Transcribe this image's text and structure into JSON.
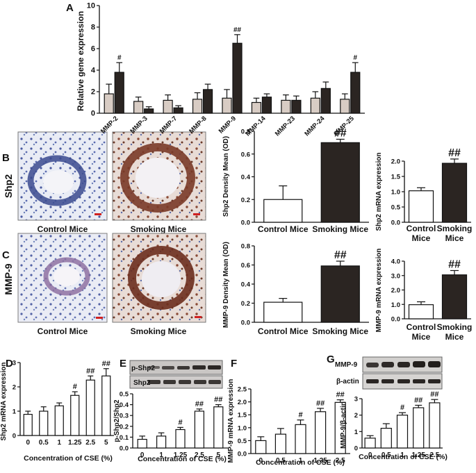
{
  "colors": {
    "light_bar": "#d8ccc4",
    "dark_bar": "#2b2522",
    "open_bar": "#ffffff",
    "axis": "#111111",
    "stain_blue": "#6b7fb8",
    "stain_brown": "#8a4a36"
  },
  "panels": {
    "A": {
      "label": "A"
    },
    "B": {
      "label": "B",
      "row_label": "Shp2",
      "img_left": "Control Mice",
      "img_right": "Smoking Mice"
    },
    "C": {
      "label": "C",
      "row_label": "MMP-9",
      "img_left": "Control Mice",
      "img_right": "Smoking Mice"
    },
    "D": {
      "label": "D"
    },
    "E": {
      "label": "E",
      "blot_rows": [
        "p-Shp2",
        "Shp2"
      ]
    },
    "F": {
      "label": "F"
    },
    "G": {
      "label": "G",
      "blot_rows": [
        "MMP-9",
        "β-actin"
      ]
    }
  },
  "chart_data": [
    {
      "id": "A",
      "type": "bar",
      "ylabel": "Relative gene expression",
      "ylim": [
        0,
        10
      ],
      "yticks": [
        0,
        2,
        4,
        6,
        8,
        10
      ],
      "categories": [
        "MMP-2",
        "MMP-3",
        "MMP-7",
        "MMP-8",
        "MMP-9",
        "MMP-14",
        "MMP-23",
        "MMP-24",
        "MMP-25"
      ],
      "series": [
        {
          "values": [
            1.8,
            1.1,
            1.2,
            1.3,
            1.4,
            1.0,
            1.2,
            1.4,
            1.3
          ],
          "errors": [
            0.9,
            0.4,
            0.5,
            0.6,
            0.8,
            0.4,
            0.5,
            0.6,
            0.5
          ]
        },
        {
          "values": [
            3.8,
            0.4,
            0.5,
            2.2,
            6.5,
            1.5,
            1.2,
            2.3,
            3.8
          ],
          "errors": [
            0.9,
            0.2,
            0.2,
            0.5,
            0.8,
            0.3,
            0.4,
            0.6,
            0.9
          ]
        }
      ],
      "annotations": [
        "#",
        "",
        "",
        "",
        "##",
        "",
        "",
        "",
        "#"
      ]
    },
    {
      "id": "B1",
      "type": "bar",
      "ylabel": "Shp2 Density Mean (OD)",
      "ylim": [
        0,
        0.8
      ],
      "yticks": [
        "0.0",
        "0.2",
        "0.4",
        "0.6",
        "0.8"
      ],
      "categories": [
        "Control Mice",
        "Smoking Mice"
      ],
      "values": [
        0.2,
        0.7
      ],
      "errors": [
        0.12,
        0.03
      ],
      "annotations": [
        "",
        "##"
      ]
    },
    {
      "id": "B2",
      "type": "bar",
      "ylabel": "Shp2 mRNA expression",
      "ylim": [
        0,
        2.0
      ],
      "yticks": [
        "0.0",
        "0.5",
        "1.0",
        "1.5",
        "2.0"
      ],
      "categories": [
        "Control Mice",
        "Smoking Mice"
      ],
      "values": [
        1.03,
        1.93
      ],
      "errors": [
        0.1,
        0.14
      ],
      "annotations": [
        "",
        "##"
      ]
    },
    {
      "id": "C1",
      "type": "bar",
      "ylabel": "MMP-9 Density Mean (OD)",
      "ylim": [
        0,
        0.8
      ],
      "yticks": [
        "0.0",
        "0.2",
        "0.4",
        "0.6",
        "0.8"
      ],
      "categories": [
        "Control Mice",
        "Smoking Mice"
      ],
      "values": [
        0.21,
        0.59
      ],
      "errors": [
        0.04,
        0.05
      ],
      "annotations": [
        "",
        "##"
      ]
    },
    {
      "id": "C2",
      "type": "bar",
      "ylabel": "MMP-9 mRNA expression",
      "ylim": [
        0,
        4.0
      ],
      "yticks": [
        "0.0",
        "1.0",
        "2.0",
        "3.0",
        "4.0"
      ],
      "categories": [
        "Control Mice",
        "Smoking Mice"
      ],
      "values": [
        0.98,
        3.05
      ],
      "errors": [
        0.2,
        0.3
      ],
      "annotations": [
        "",
        "##"
      ]
    },
    {
      "id": "D",
      "type": "bar",
      "ylabel": "Shp2 mRNA expression",
      "xlabel": "Concentration of CSE (%)",
      "ylim": [
        0,
        3
      ],
      "yticks": [
        "0",
        "1",
        "2",
        "3"
      ],
      "categories": [
        "0",
        "0.5",
        "1",
        "1.25",
        "2.5",
        "5"
      ],
      "values": [
        0.87,
        1.0,
        1.22,
        1.65,
        2.28,
        2.45
      ],
      "errors": [
        0.13,
        0.18,
        0.12,
        0.15,
        0.17,
        0.3
      ],
      "annotations": [
        "",
        "",
        "",
        "#",
        "##",
        "##"
      ]
    },
    {
      "id": "E",
      "type": "bar",
      "ylabel": "p-Shp2/Shp2",
      "xlabel": "Concentration of CSE (%)",
      "ylim": [
        0,
        0.5
      ],
      "yticks": [
        "0.0",
        "0.1",
        "0.2",
        "0.3",
        "0.4",
        "0.5"
      ],
      "categories": [
        "0",
        "1",
        "1.25",
        "2.5",
        "5"
      ],
      "values": [
        0.08,
        0.11,
        0.17,
        0.34,
        0.38
      ],
      "errors": [
        0.03,
        0.03,
        0.02,
        0.02,
        0.02
      ],
      "annotations": [
        "",
        "",
        "#",
        "##",
        "##"
      ]
    },
    {
      "id": "F",
      "type": "bar",
      "ylabel": "MMP-9 mRNA expression",
      "xlabel": "Concentration of CSE (%)",
      "ylim": [
        0,
        2.5
      ],
      "yticks": [
        "0.0",
        "0.5",
        "1.0",
        "1.5",
        "2.0",
        "2.5"
      ],
      "categories": [
        "0",
        "0.5",
        "1",
        "1.25",
        "2.5"
      ],
      "values": [
        0.5,
        0.75,
        1.12,
        1.62,
        1.98
      ],
      "errors": [
        0.15,
        0.22,
        0.18,
        0.13,
        0.1
      ],
      "annotations": [
        "",
        "",
        "#",
        "##",
        "##"
      ]
    },
    {
      "id": "G",
      "type": "bar",
      "ylabel": "MMP-9/β-actin",
      "xlabel": "Concentration of CSE (%)",
      "ylim": [
        0,
        3
      ],
      "yticks": [
        "0",
        "1",
        "2",
        "3"
      ],
      "categories": [
        "0",
        "0.5",
        "1",
        "1.25",
        "2.5"
      ],
      "values": [
        0.6,
        1.2,
        2.0,
        2.45,
        2.75
      ],
      "errors": [
        0.15,
        0.28,
        0.15,
        0.15,
        0.2
      ],
      "annotations": [
        "",
        "",
        "#",
        "##",
        "##"
      ]
    }
  ]
}
